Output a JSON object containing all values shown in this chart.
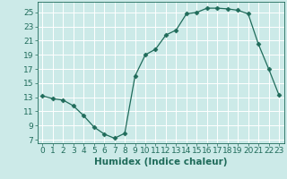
{
  "x": [
    0,
    1,
    2,
    3,
    4,
    5,
    6,
    7,
    8,
    9,
    10,
    11,
    12,
    13,
    14,
    15,
    16,
    17,
    18,
    19,
    20,
    21,
    22,
    23
  ],
  "y": [
    13.2,
    12.8,
    12.6,
    11.8,
    10.4,
    8.8,
    7.8,
    7.2,
    7.9,
    16.0,
    19.0,
    19.8,
    21.8,
    22.5,
    24.8,
    25.0,
    25.6,
    25.6,
    25.5,
    25.3,
    24.8,
    20.5,
    17.0,
    13.3
  ],
  "line_color": "#1f6b5a",
  "marker": "D",
  "marker_size": 2.5,
  "bg_color": "#cceae8",
  "grid_color": "#ffffff",
  "xlabel": "Humidex (Indice chaleur)",
  "ylabel_ticks": [
    7,
    9,
    11,
    13,
    15,
    17,
    19,
    21,
    23,
    25
  ],
  "xlim": [
    -0.5,
    23.5
  ],
  "ylim": [
    6.5,
    26.5
  ],
  "xticks": [
    0,
    1,
    2,
    3,
    4,
    5,
    6,
    7,
    8,
    9,
    10,
    11,
    12,
    13,
    14,
    15,
    16,
    17,
    18,
    19,
    20,
    21,
    22,
    23
  ],
  "xlabel_fontsize": 7.5,
  "tick_fontsize": 6.5
}
